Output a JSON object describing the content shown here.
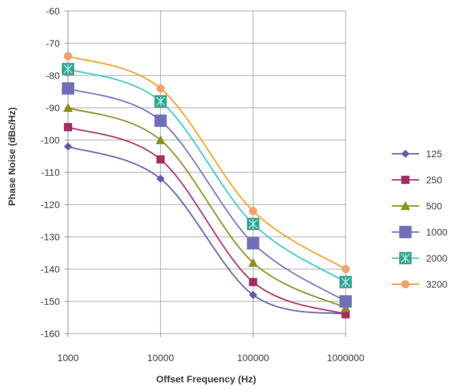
{
  "chart_data": {
    "type": "line",
    "title": "",
    "xlabel": "Offset Frequency (Hz)",
    "ylabel": "Phase Noise (dBc/Hz)",
    "x": [
      1000,
      10000,
      100000,
      1000000
    ],
    "x_tick_labels": [
      "1000",
      "10000",
      "100000",
      "1000000"
    ],
    "x_scale": "log",
    "ylim": [
      -160,
      -60
    ],
    "y_ticks": [
      -60,
      -70,
      -80,
      -90,
      -100,
      -110,
      -120,
      -130,
      -140,
      -150,
      -160
    ],
    "y_tick_labels": [
      "-60",
      "-70",
      "-80",
      "-90",
      "-100",
      "-110",
      "-120",
      "-130",
      "-140",
      "-150",
      "-160"
    ],
    "grid": true,
    "legend_position": "right",
    "series": [
      {
        "name": "125",
        "values": [
          -102,
          -112,
          -148,
          -154
        ],
        "color": "#5b5ea6",
        "marker": "diamond"
      },
      {
        "name": "250",
        "values": [
          -96,
          -106,
          -144,
          -154
        ],
        "color": "#a32d62",
        "marker": "square"
      },
      {
        "name": "500",
        "values": [
          -90,
          -100,
          -138,
          -152
        ],
        "color": "#8c8c1a",
        "marker": "triangle"
      },
      {
        "name": "1000",
        "values": [
          -84,
          -94,
          -132,
          -150
        ],
        "color": "#6f6fb8",
        "marker": "square-large"
      },
      {
        "name": "2000",
        "values": [
          -78,
          -88,
          -126,
          -144
        ],
        "color": "#3cc6c6",
        "marker": "square-star"
      },
      {
        "name": "3200",
        "values": [
          -74,
          -84,
          -122,
          -140
        ],
        "color": "#e8a020",
        "marker": "circle"
      }
    ]
  }
}
